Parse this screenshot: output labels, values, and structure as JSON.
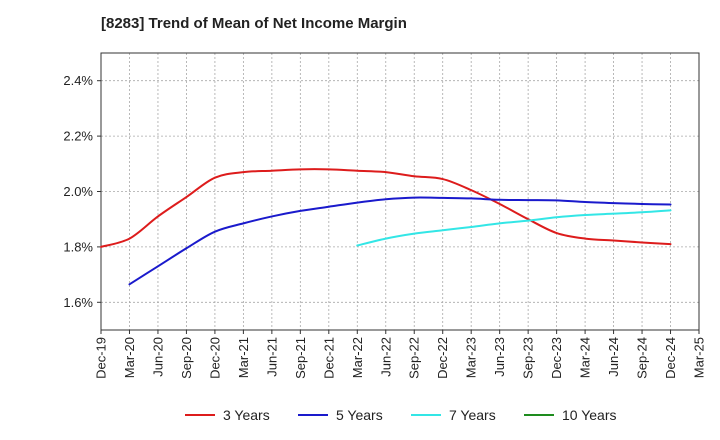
{
  "chart_data": {
    "type": "line",
    "title": "[8283]  Trend of Mean of Net Income Margin",
    "xlabel": "",
    "ylabel": "",
    "x_ticks": [
      "Dec-19",
      "Mar-20",
      "Jun-20",
      "Sep-20",
      "Dec-20",
      "Mar-21",
      "Jun-21",
      "Sep-21",
      "Dec-21",
      "Mar-22",
      "Jun-22",
      "Sep-22",
      "Dec-22",
      "Mar-23",
      "Jun-23",
      "Sep-23",
      "Dec-23",
      "Mar-24",
      "Jun-24",
      "Sep-24",
      "Dec-24",
      "Mar-25"
    ],
    "y_ticks": [
      "1.6%",
      "1.8%",
      "2.0%",
      "2.2%",
      "2.4%"
    ],
    "y_tick_values": [
      1.6,
      1.8,
      2.0,
      2.2,
      2.4
    ],
    "ylim": [
      1.5,
      2.5
    ],
    "grid": true,
    "legend_position": "bottom",
    "series": [
      {
        "name": "3 Years",
        "color": "#dd1c1c",
        "x": [
          "Dec-19",
          "Mar-20",
          "Jun-20",
          "Sep-20",
          "Dec-20",
          "Mar-21",
          "Jun-21",
          "Sep-21",
          "Dec-21",
          "Mar-22",
          "Jun-22",
          "Sep-22",
          "Dec-22",
          "Mar-23",
          "Jun-23",
          "Sep-23",
          "Dec-23",
          "Mar-24",
          "Jun-24",
          "Sep-24",
          "Dec-24"
        ],
        "values": [
          1.8,
          1.83,
          1.91,
          1.98,
          2.05,
          2.07,
          2.075,
          2.08,
          2.08,
          2.075,
          2.07,
          2.055,
          2.045,
          2.005,
          1.955,
          1.9,
          1.85,
          1.83,
          1.823,
          1.816,
          1.81
        ]
      },
      {
        "name": "5 Years",
        "color": "#1a1acc",
        "x": [
          "Mar-20",
          "Jun-20",
          "Sep-20",
          "Dec-20",
          "Mar-21",
          "Jun-21",
          "Sep-21",
          "Dec-21",
          "Mar-22",
          "Jun-22",
          "Sep-22",
          "Dec-22",
          "Mar-23",
          "Jun-23",
          "Sep-23",
          "Dec-23",
          "Mar-24",
          "Jun-24",
          "Sep-24",
          "Dec-24"
        ],
        "values": [
          1.665,
          1.73,
          1.795,
          1.855,
          1.885,
          1.91,
          1.93,
          1.945,
          1.96,
          1.972,
          1.978,
          1.977,
          1.975,
          1.97,
          1.969,
          1.968,
          1.962,
          1.958,
          1.955,
          1.953
        ]
      },
      {
        "name": "7 Years",
        "color": "#33e6e6",
        "x": [
          "Mar-22",
          "Jun-22",
          "Sep-22",
          "Dec-22",
          "Mar-23",
          "Jun-23",
          "Sep-23",
          "Dec-23",
          "Mar-24",
          "Jun-24",
          "Sep-24",
          "Dec-24"
        ],
        "values": [
          1.805,
          1.83,
          1.848,
          1.86,
          1.872,
          1.885,
          1.895,
          1.907,
          1.915,
          1.92,
          1.925,
          1.932
        ]
      },
      {
        "name": "10 Years",
        "color": "#1e8c1e",
        "x": [],
        "values": []
      }
    ]
  }
}
